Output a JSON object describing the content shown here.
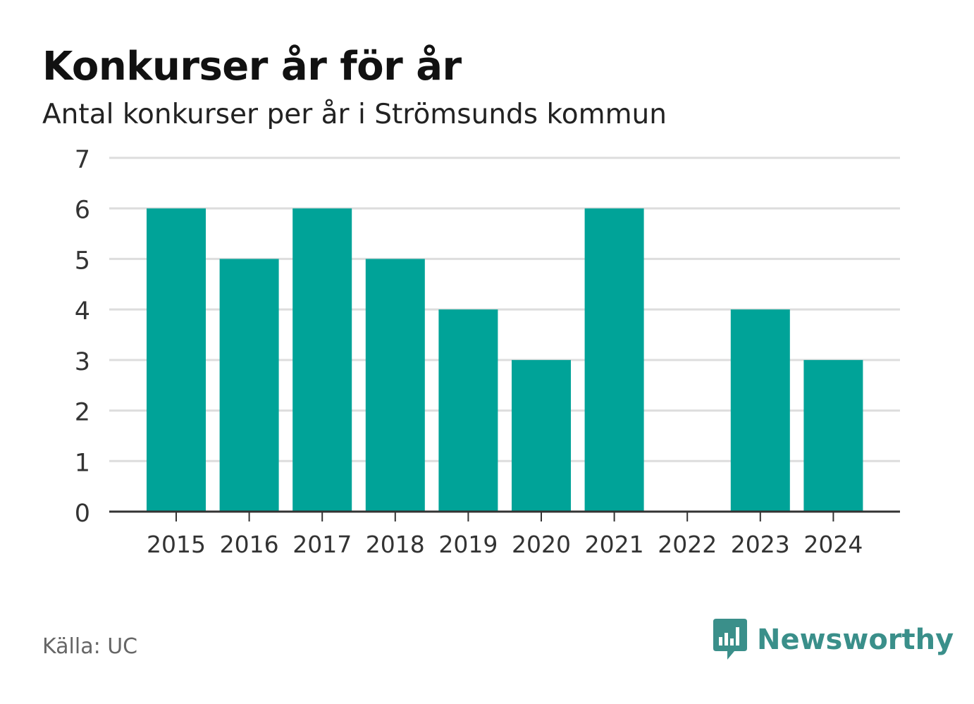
{
  "title": "Konkurser år för år",
  "subtitle": "Antal konkurser per år i Strömsunds kommun",
  "source": "Källa: UC",
  "brand": {
    "name": "Newsworthy",
    "icon": "newsworthy-logo-icon",
    "color": "#3a8f8a"
  },
  "colors": {
    "bar": "#00a398",
    "grid": "#dddddd",
    "axis": "#333333"
  },
  "chart_data": {
    "type": "bar",
    "categories": [
      "2015",
      "2016",
      "2017",
      "2018",
      "2019",
      "2020",
      "2021",
      "2022",
      "2023",
      "2024"
    ],
    "values": [
      6,
      5,
      6,
      5,
      4,
      3,
      6,
      0,
      4,
      3
    ],
    "yticks": [
      "0",
      "1",
      "2",
      "3",
      "4",
      "5",
      "6",
      "7"
    ],
    "ylim": [
      0,
      7
    ],
    "xlabel": "",
    "ylabel": "",
    "grid": true,
    "legend": "none"
  }
}
